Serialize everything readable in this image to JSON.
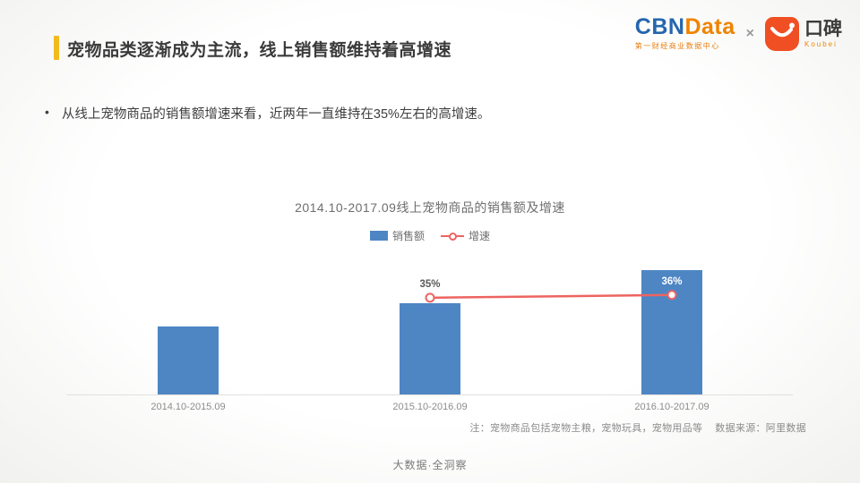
{
  "header": {
    "title": "宠物品类逐渐成为主流，线上销售额维持着高增速",
    "logos": {
      "cbn_blue": "CBN",
      "cbn_orange": "Data",
      "cbn_tagline": "第一财经商业数据中心",
      "separator": "×",
      "koubei_cn": "口碑",
      "koubei_en": "Koubei"
    }
  },
  "body": {
    "bullet_marker": "•",
    "bullet_text": "从线上宠物商品的销售额增速来看，近两年一直维持在35%左右的高增速。"
  },
  "chart_data": {
    "type": "bar",
    "title": "2014.10-2017.09线上宠物商品的销售额及增速",
    "categories": [
      "2014.10-2015.09",
      "2015.10-2016.09",
      "2016.10-2017.09"
    ],
    "series": [
      {
        "name": "销售额",
        "type": "bar",
        "values": [
          100,
          135,
          184
        ],
        "values_estimated": true
      },
      {
        "name": "增速",
        "type": "line",
        "values": [
          null,
          35,
          36
        ],
        "labels": [
          "",
          "35%",
          "36%"
        ],
        "unit": "%"
      }
    ],
    "legend_position": "top",
    "grid": false,
    "y_axis_visible": false,
    "colors": {
      "bar": "#4e86c4",
      "line": "#ed6460",
      "label_outside": "#595959",
      "label_inside": "#ffffff"
    }
  },
  "footer": {
    "note": "注：宠物商品包括宠物主粮，宠物玩具，宠物用品等",
    "source": "数据来源：阿里数据",
    "tagline": "大数据·全洞察"
  }
}
